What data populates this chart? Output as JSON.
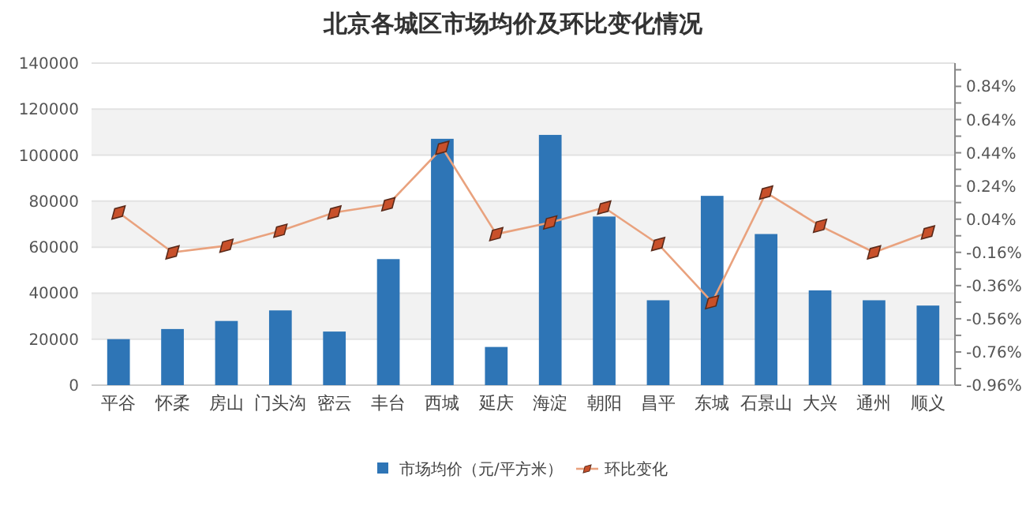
{
  "chart_data": {
    "type": "bar",
    "title": "北京各城区市场均价及环比变化情况",
    "categories": [
      "平谷",
      "怀柔",
      "房山",
      "门头沟",
      "密云",
      "丰台",
      "西城",
      "延庆",
      "海淀",
      "朝阳",
      "昌平",
      "东城",
      "石景山",
      "大兴",
      "通州",
      "顺义"
    ],
    "series": [
      {
        "name": "市场均价（元/平方米）",
        "color": "#2e75b6",
        "values": [
          20000,
          24400,
          27900,
          32500,
          23300,
          54800,
          107100,
          16600,
          108800,
          73300,
          36900,
          82300,
          65700,
          41200,
          36900,
          34600
        ]
      },
      {
        "name": "环比变化",
        "type": "line",
        "axis": "y2",
        "color": "#c8502a",
        "marker": "diamond",
        "values": [
          0.08,
          -0.16,
          -0.12,
          -0.03,
          0.08,
          0.13,
          0.47,
          -0.05,
          0.02,
          0.11,
          -0.11,
          -0.46,
          0.2,
          0.0,
          -0.16,
          -0.04
        ]
      }
    ],
    "ylim": [
      0,
      140000
    ],
    "yticks": [
      0,
      20000,
      40000,
      60000,
      80000,
      100000,
      120000,
      140000
    ],
    "y2lim": [
      -0.96,
      0.98
    ],
    "y2ticks": [
      {
        "value": -0.96,
        "label": "-0.96%"
      },
      {
        "value": -0.86,
        "label": null
      },
      {
        "value": -0.76,
        "label": "-0.76%"
      },
      {
        "value": -0.66,
        "label": null
      },
      {
        "value": -0.56,
        "label": "-0.56%"
      },
      {
        "value": -0.46,
        "label": null
      },
      {
        "value": -0.36,
        "label": "-0.36%"
      },
      {
        "value": -0.26,
        "label": null
      },
      {
        "value": -0.16,
        "label": "-0.16%"
      },
      {
        "value": -0.06,
        "label": null
      },
      {
        "value": 0.04,
        "label": "0.04%"
      },
      {
        "value": 0.14,
        "label": null
      },
      {
        "value": 0.24,
        "label": "0.24%"
      },
      {
        "value": 0.34,
        "label": null
      },
      {
        "value": 0.44,
        "label": "0.44%"
      },
      {
        "value": 0.54,
        "label": null
      },
      {
        "value": 0.64,
        "label": "0.64%"
      },
      {
        "value": 0.74,
        "label": null
      },
      {
        "value": 0.84,
        "label": "0.84%"
      },
      {
        "value": 0.94,
        "label": null
      }
    ],
    "grid": "y",
    "legend": "bottom"
  }
}
